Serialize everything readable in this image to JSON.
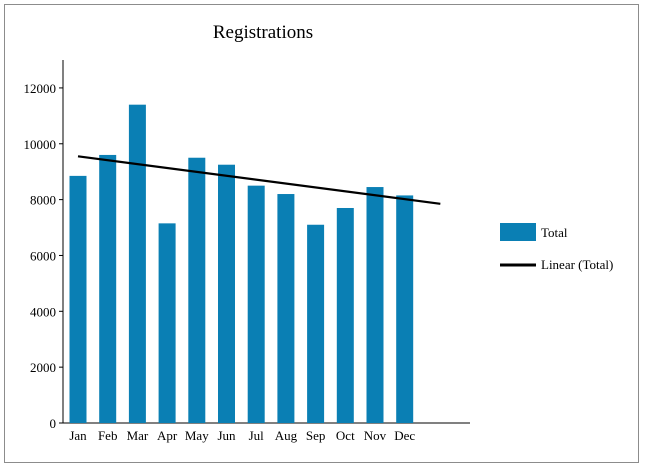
{
  "chart_data": {
    "type": "bar",
    "title": "Registrations",
    "xlabel": "",
    "ylabel": "",
    "ylim": [
      0,
      13000
    ],
    "yticks": [
      0,
      2000,
      4000,
      6000,
      8000,
      10000,
      12000
    ],
    "categories": [
      "Jan",
      "Feb",
      "Mar",
      "Apr",
      "May",
      "Jun",
      "Jul",
      "Aug",
      "Sep",
      "Oct",
      "Nov",
      "Dec"
    ],
    "series": [
      {
        "name": "Total",
        "color": "#0a7fb4",
        "values": [
          8850,
          9600,
          11400,
          7150,
          9500,
          9250,
          8500,
          8200,
          7100,
          7700,
          8450,
          8150
        ]
      }
    ],
    "trendline": {
      "name": "Linear (Total)",
      "type": "linear",
      "color": "#000000",
      "start": 9550,
      "end": 7850
    },
    "grid": false,
    "legend": "right"
  }
}
